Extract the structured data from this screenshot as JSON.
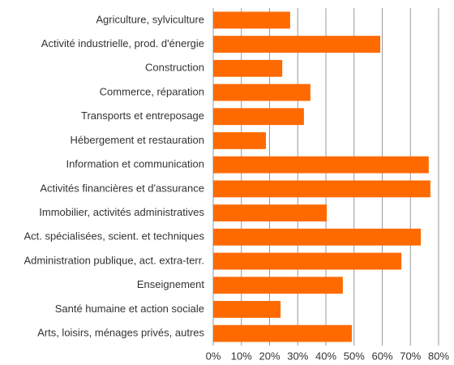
{
  "chart_data": {
    "type": "barh",
    "categories": [
      "Agriculture, sylviculture",
      "Activité industrielle, prod. d'énergie",
      "Construction",
      "Commerce, réparation",
      "Transports et entreposage",
      "Hébergement et restauration",
      "Information et communication",
      "Activités financières et d'assurance",
      "Immobilier, activités administratives",
      "Act. spécialisées, scient. et techniques",
      "Administration publique, act. extra-terr.",
      "Enseignement",
      "Santé humaine et action sociale",
      "Arts, loisirs, ménages privés, autres"
    ],
    "values": [
      27.3,
      59.3,
      24.5,
      34.5,
      32.2,
      18.7,
      76.5,
      77.1,
      40.3,
      73.7,
      66.8,
      46,
      23.9,
      49.2
    ],
    "color": "#ff6a00",
    "xlim": [
      0,
      80
    ],
    "xticks": [
      {
        "value": 0,
        "label": "0%"
      },
      {
        "value": 10,
        "label": "10%"
      },
      {
        "value": 20,
        "label": "20%"
      },
      {
        "value": 30,
        "label": "30%"
      },
      {
        "value": 40,
        "label": "40%"
      },
      {
        "value": 50,
        "label": "50%"
      },
      {
        "value": 60,
        "label": "60%"
      },
      {
        "value": 70,
        "label": "70%"
      },
      {
        "value": 80,
        "label": "80%"
      }
    ],
    "grid": true
  }
}
